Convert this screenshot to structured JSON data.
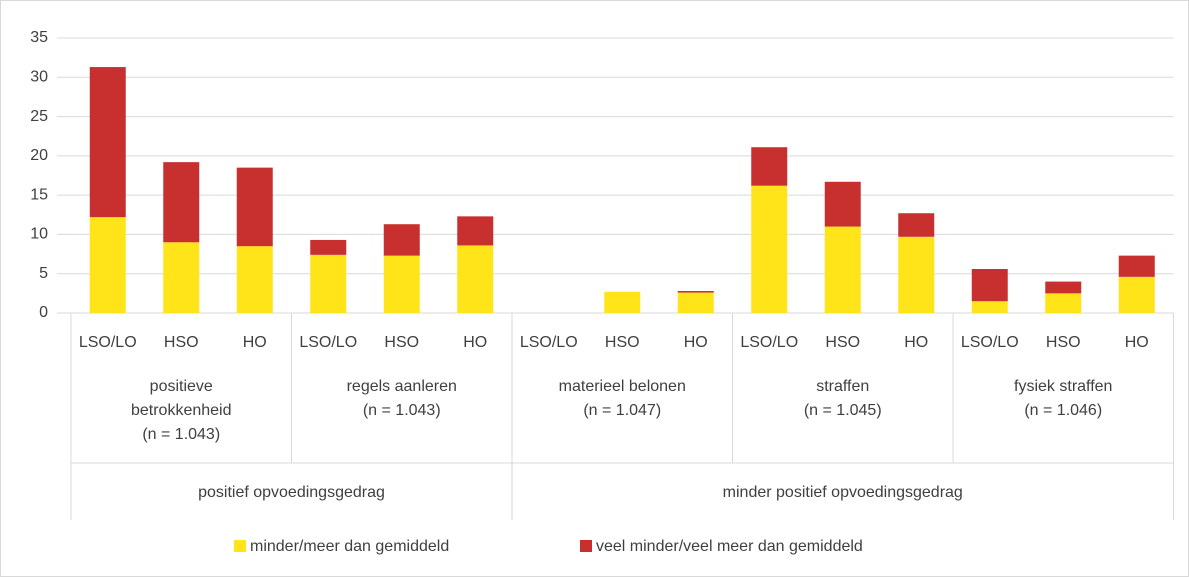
{
  "chart_data": {
    "type": "bar",
    "stacked": true,
    "groups": [
      {
        "name": "positief opvoedingsgedrag",
        "subgroups": [
          {
            "name": [
              "positieve",
              "betrokkenheid",
              "(n = 1.043)"
            ],
            "categories": [
              "LSO/LO",
              "HSO",
              "HO"
            ]
          },
          {
            "name": [
              "regels aanleren",
              "(n = 1.043)"
            ],
            "categories": [
              "LSO/LO",
              "HSO",
              "HO"
            ]
          }
        ]
      },
      {
        "name": "minder positief opvoedingsgedrag",
        "subgroups": [
          {
            "name": [
              "materieel belonen",
              "(n = 1.047)"
            ],
            "categories": [
              "LSO/LO",
              "HSO",
              "HO"
            ]
          },
          {
            "name": [
              "straffen",
              "(n = 1.045)"
            ],
            "categories": [
              "LSO/LO",
              "HSO",
              "HO"
            ]
          },
          {
            "name": [
              "fysiek straffen",
              "(n = 1.046)"
            ],
            "categories": [
              "LSO/LO",
              "HSO",
              "HO"
            ]
          }
        ]
      }
    ],
    "series": [
      {
        "name": "minder/meer dan gemiddeld",
        "color": "#ffe41a",
        "values": [
          12.2,
          9.0,
          8.5,
          7.4,
          7.3,
          8.6,
          0,
          2.7,
          2.6,
          16.2,
          11.0,
          9.7,
          1.5,
          2.5,
          4.6
        ]
      },
      {
        "name": "veel minder/veel meer dan gemiddeld",
        "color": "#c8302f",
        "values": [
          19.1,
          10.2,
          10.0,
          1.9,
          4.0,
          3.7,
          0,
          0,
          0.2,
          4.9,
          5.7,
          3.0,
          4.1,
          1.5,
          2.7
        ]
      }
    ],
    "ylim": [
      0,
      35
    ],
    "yticks": [
      0,
      5,
      10,
      15,
      20,
      25,
      30,
      35
    ],
    "grid": true,
    "legend": "bottom"
  }
}
